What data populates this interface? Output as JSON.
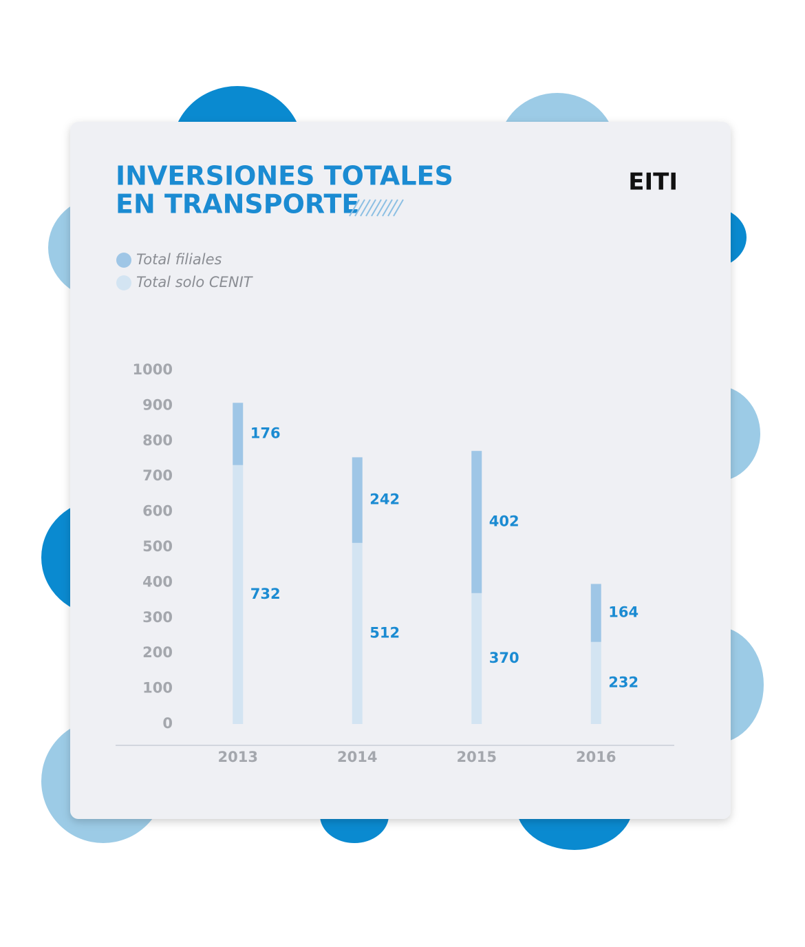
{
  "chart_data": {
    "type": "stacked_bar",
    "title": [
      "INVERSIONES TOTALES",
      "EN TRANSPORTE"
    ],
    "logo": "EITI",
    "categories": [
      "2013",
      "2014",
      "2015",
      "2016"
    ],
    "series": [
      {
        "name": "Total solo CENIT",
        "color": "#d3e4f2",
        "values": [
          732,
          512,
          370,
          232
        ]
      },
      {
        "name": "Total filiales",
        "color": "#9fc6e6",
        "values": [
          176,
          242,
          402,
          164
        ]
      }
    ],
    "ylim": [
      0,
      1000
    ],
    "yticks": [
      0,
      100,
      200,
      300,
      400,
      500,
      600,
      700,
      800,
      900,
      1000
    ],
    "legend": "top-left"
  }
}
